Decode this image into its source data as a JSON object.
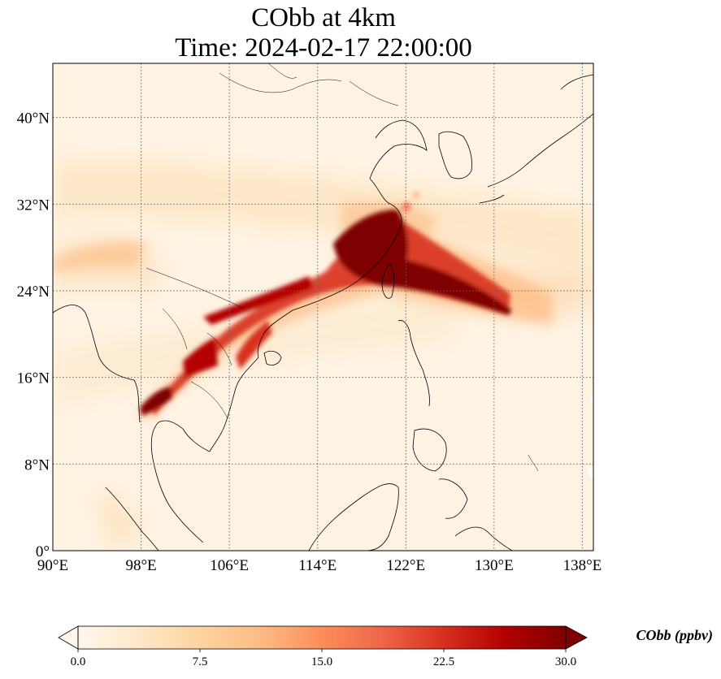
{
  "title": {
    "line1": "CObb at 4km",
    "line2": "Time: 2024-02-17 22:00:00"
  },
  "map": {
    "lon_range": [
      90,
      139
    ],
    "lat_range": [
      0,
      45
    ],
    "lon_ticks": [
      "90°E",
      "98°E",
      "106°E",
      "114°E",
      "122°E",
      "130°E",
      "138°E"
    ],
    "lat_ticks": [
      "0°",
      "8°N",
      "16°N",
      "24°N",
      "32°N",
      "40°N"
    ],
    "gridlines": true
  },
  "colorbar": {
    "label": "CObb (ppbv)",
    "ticks": [
      "0.0",
      "7.5",
      "15.0",
      "22.5",
      "30.0"
    ],
    "range": [
      0,
      30
    ],
    "extend": "both",
    "colormap": "OrRd",
    "colors": [
      "#fff7ec",
      "#fee8c8",
      "#fdd49e",
      "#fdbb84",
      "#fc8d59",
      "#ef6548",
      "#d7301f",
      "#b30000",
      "#7f0000"
    ]
  }
}
